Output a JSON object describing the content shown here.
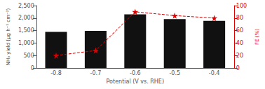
{
  "chart_data": {
    "type": "bar",
    "xlabel": "Potential (V vs. RHE)",
    "ylabel": "NH₃ yield (μg h⁻¹ cm⁻²)",
    "y2label": "FE (%)",
    "categories": [
      "-0.8",
      "-0.7",
      "-0.6",
      "-0.5",
      "-0.4"
    ],
    "series": [
      {
        "type": "bar",
        "color": "#111111",
        "values": [
          1450,
          1490,
          2150,
          1960,
          1890
        ]
      },
      {
        "type": "line",
        "axis": "y2",
        "color": "#dd0000",
        "marker": "star",
        "line_style": "dashed",
        "values": [
          20,
          28,
          90,
          84,
          80
        ]
      }
    ],
    "ylim": [
      0,
      2500
    ],
    "yticks": [
      0,
      500,
      1000,
      1500,
      2000,
      2500
    ],
    "y2lim": [
      0,
      100
    ],
    "y2ticks": [
      0,
      20,
      40,
      60,
      80,
      100
    ],
    "grid": false
  }
}
